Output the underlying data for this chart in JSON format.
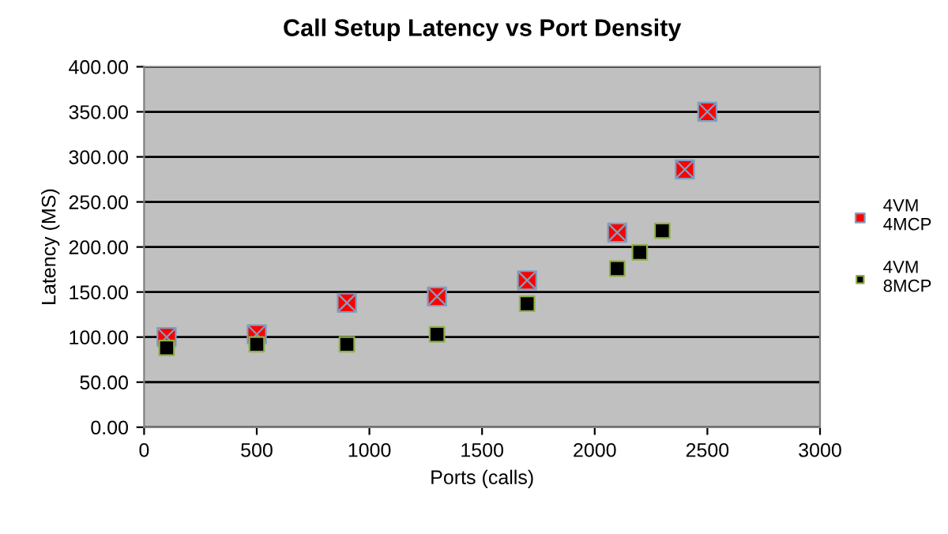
{
  "chart_data": {
    "type": "scatter",
    "title": "Call Setup Latency vs Port Density",
    "xlabel": "Ports (calls)",
    "ylabel": "Latency (MS)",
    "series": [
      {
        "name": "4VM\n4MCP",
        "color": "#ff0000",
        "x": [
          100,
          500,
          900,
          1300,
          1700,
          2100,
          2400,
          2500
        ],
        "values": [
          100,
          103,
          138,
          145,
          163,
          216,
          286,
          350
        ]
      },
      {
        "name": "4VM\n8MCP",
        "color": "#000000",
        "x": [
          100,
          500,
          900,
          1300,
          1700,
          2100,
          2200,
          2300
        ],
        "values": [
          88,
          92,
          92,
          103,
          137,
          176,
          194,
          218
        ]
      }
    ],
    "xlim": [
      0,
      3000
    ],
    "xticks": [
      0,
      500,
      1000,
      1500,
      2000,
      2500,
      3000
    ],
    "ylim": [
      0,
      400
    ],
    "yticks": [
      {
        "value": 0,
        "label": "0.00"
      },
      {
        "value": 50,
        "label": "50.00"
      },
      {
        "value": 100,
        "label": "100.00"
      },
      {
        "value": 150,
        "label": "150.00"
      },
      {
        "value": 200,
        "label": "200.00"
      },
      {
        "value": 250,
        "label": "250.00"
      },
      {
        "value": 300,
        "label": "300.00"
      },
      {
        "value": 350,
        "label": "350.00"
      },
      {
        "value": 400,
        "label": "400.00"
      }
    ],
    "grid": "y",
    "legend": "right",
    "marker": "square"
  }
}
